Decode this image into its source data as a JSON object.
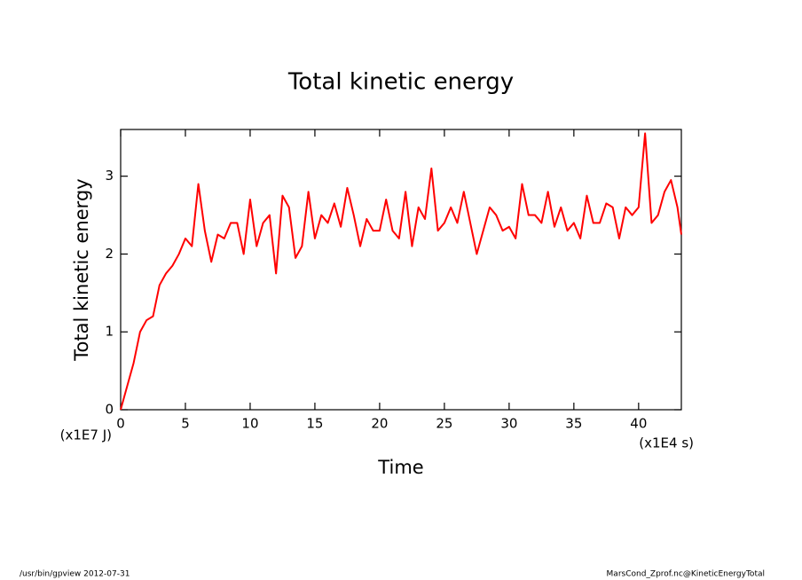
{
  "chart_data": {
    "type": "line",
    "title": "Total kinetic energy",
    "y_label": "Total kinetic energy",
    "x_label": "Time",
    "y_unit_label": "(x1E7 J)",
    "x_unit_label": "(x1E4 s)",
    "footer_left": "/usr/bin/gpview  2012-07-31",
    "footer_right": "MarsCond_Zprof.nc@KineticEnergyTotal",
    "x": [
      0,
      0.5,
      1,
      1.5,
      2,
      2.5,
      3,
      3.5,
      4,
      4.5,
      5,
      5.5,
      6,
      6.5,
      7,
      7.5,
      8,
      8.5,
      9,
      9.5,
      10,
      10.5,
      11,
      11.5,
      12,
      12.5,
      13,
      13.5,
      14,
      14.5,
      15,
      15.5,
      16,
      16.5,
      17,
      17.5,
      18,
      18.5,
      19,
      19.5,
      20,
      20.5,
      21,
      21.5,
      22,
      22.5,
      23,
      23.5,
      24,
      24.5,
      25,
      25.5,
      26,
      26.5,
      27,
      27.5,
      28,
      28.5,
      29,
      29.5,
      30,
      30.5,
      31,
      31.5,
      32,
      32.5,
      33,
      33.5,
      34,
      34.5,
      35,
      35.5,
      36,
      36.5,
      37,
      37.5,
      38,
      38.5,
      39,
      39.5,
      40,
      40.5,
      41,
      41.5,
      42,
      42.5,
      43,
      43.3
    ],
    "series": [
      {
        "name": "Total kinetic energy",
        "color": "#ff0000",
        "values": [
          0,
          0.3,
          0.6,
          1.0,
          1.15,
          1.2,
          1.6,
          1.75,
          1.85,
          2.0,
          2.2,
          2.1,
          2.9,
          2.3,
          1.9,
          2.25,
          2.2,
          2.4,
          2.4,
          2.0,
          2.7,
          2.1,
          2.4,
          2.5,
          1.75,
          2.75,
          2.6,
          1.95,
          2.1,
          2.8,
          2.2,
          2.5,
          2.4,
          2.65,
          2.35,
          2.85,
          2.5,
          2.1,
          2.45,
          2.3,
          2.3,
          2.7,
          2.3,
          2.2,
          2.8,
          2.1,
          2.6,
          2.45,
          3.1,
          2.3,
          2.4,
          2.6,
          2.4,
          2.8,
          2.4,
          2.0,
          2.3,
          2.6,
          2.5,
          2.3,
          2.35,
          2.2,
          2.9,
          2.5,
          2.5,
          2.4,
          2.8,
          2.35,
          2.6,
          2.3,
          2.4,
          2.2,
          2.75,
          2.4,
          2.4,
          2.65,
          2.6,
          2.2,
          2.6,
          2.5,
          2.6,
          3.55,
          2.4,
          2.5,
          2.8,
          2.95,
          2.6,
          2.25
        ]
      }
    ],
    "xlim": [
      0,
      43.3
    ],
    "ylim": [
      0,
      3.6
    ],
    "xticks": [
      0,
      5,
      10,
      15,
      20,
      25,
      30,
      35,
      40
    ],
    "yticks": [
      0,
      1,
      2,
      3
    ]
  }
}
